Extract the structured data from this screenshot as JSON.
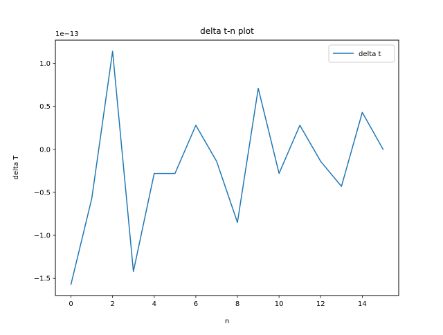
{
  "chart_data": {
    "type": "line",
    "title": "delta t-n plot",
    "xlabel": "n",
    "ylabel": "delta T",
    "y_offset_label": "1e−13",
    "y_scale_exponent": -13,
    "xlim": [
      -0.75,
      15.75
    ],
    "ylim": [
      -1.7,
      1.27
    ],
    "xticks": [
      0,
      2,
      4,
      6,
      8,
      10,
      12,
      14
    ],
    "xtick_labels": [
      "0",
      "2",
      "4",
      "6",
      "8",
      "10",
      "12",
      "14"
    ],
    "yticks": [
      -1.5,
      -1.0,
      -0.5,
      0.0,
      0.5,
      1.0
    ],
    "ytick_labels": [
      "−1.5",
      "−1.0",
      "−0.5",
      "0.0",
      "0.5",
      "1.0"
    ],
    "grid": false,
    "legend_position": "top-right",
    "x": [
      0,
      1,
      2,
      3,
      4,
      5,
      6,
      7,
      8,
      9,
      10,
      11,
      12,
      13,
      14,
      15
    ],
    "series": [
      {
        "name": "delta t",
        "color": "#1f77b4",
        "values": [
          -1.57,
          -0.57,
          1.14,
          -1.42,
          -0.28,
          -0.28,
          0.28,
          -0.14,
          -0.85,
          0.71,
          -0.28,
          0.28,
          -0.14,
          -0.43,
          0.43,
          0.0
        ]
      }
    ]
  }
}
